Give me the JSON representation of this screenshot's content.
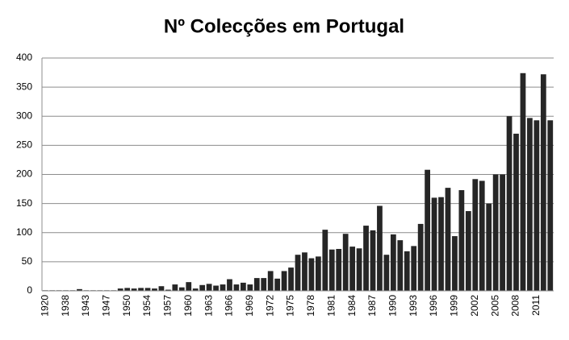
{
  "chart_data": {
    "type": "bar",
    "title": "Nº Colecções em Portugal",
    "categories": [
      "1920",
      null,
      null,
      "1938",
      null,
      null,
      "1943",
      null,
      null,
      "1947",
      null,
      null,
      "1950",
      null,
      null,
      "1954",
      null,
      null,
      "1957",
      null,
      null,
      "1960",
      null,
      null,
      "1963",
      null,
      null,
      "1966",
      null,
      null,
      "1969",
      null,
      null,
      "1972",
      null,
      null,
      "1975",
      null,
      null,
      "1978",
      null,
      null,
      "1981",
      null,
      null,
      "1984",
      null,
      null,
      "1987",
      null,
      null,
      "1990",
      null,
      null,
      "1993",
      null,
      null,
      "1996",
      null,
      null,
      "1999",
      null,
      null,
      "2002",
      null,
      null,
      "2005",
      null,
      null,
      "2008",
      null,
      null,
      "2011",
      null,
      null
    ],
    "values": [
      1,
      1,
      1,
      1,
      1,
      3,
      1,
      1,
      1,
      1,
      1,
      4,
      5,
      4,
      5,
      5,
      4,
      8,
      2,
      11,
      6,
      15,
      4,
      10,
      12,
      9,
      11,
      20,
      11,
      14,
      11,
      22,
      22,
      34,
      21,
      34,
      40,
      62,
      66,
      56,
      59,
      105,
      71,
      72,
      98,
      76,
      73,
      112,
      104,
      146,
      62,
      97,
      87,
      68,
      77,
      115,
      208,
      160,
      161,
      177,
      94,
      173,
      137,
      192,
      189,
      150,
      200,
      200,
      300,
      270,
      374,
      297,
      293,
      372,
      293
    ],
    "color": "#262626",
    "ylim": [
      0,
      400
    ],
    "yticks": [
      0,
      50,
      100,
      150,
      200,
      250,
      300,
      350,
      400
    ],
    "grid": true
  }
}
